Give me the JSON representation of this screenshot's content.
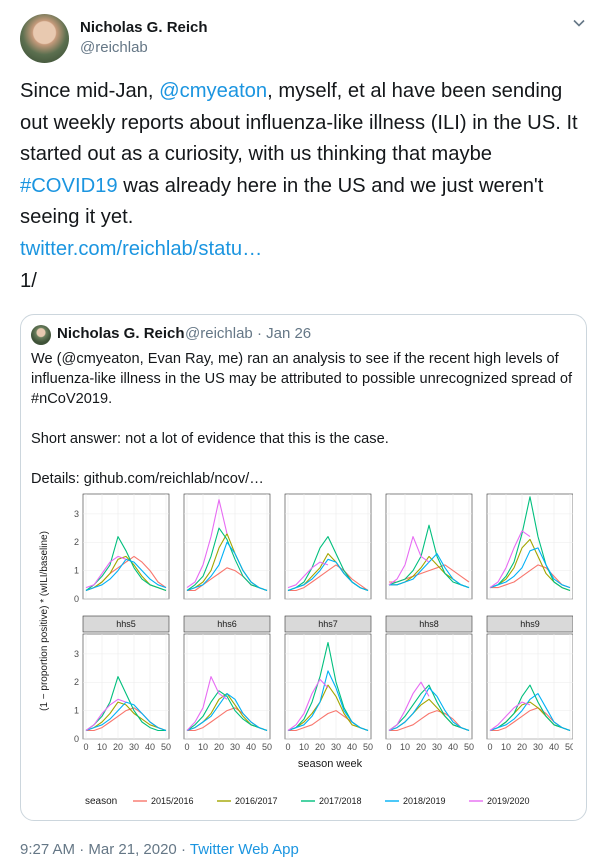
{
  "author": {
    "name": "Nicholas G. Reich",
    "handle": "@reichlab"
  },
  "tweet": {
    "p1": "Since mid-Jan, ",
    "mention": "@cmyeaton",
    "p2": ", myself, et al have been sending out weekly reports about influenza-like illness (ILI) in the US. It started out as a curiosity, with us thinking that maybe ",
    "hashtag": "#COVID19",
    "p3": " was already here in the US and we just weren't seeing it yet.",
    "link": "twitter.com/reichlab/statu…",
    "thread": "1/"
  },
  "quote": {
    "name": "Nicholas G. Reich",
    "handle": "@reichlab",
    "sep": "·",
    "date": "Jan 26",
    "text": "We (@cmyeaton, Evan Ray, me) ran an analysis to see if the recent high levels of influenza-like illness in the US may be attributed to possible unrecognized spread of #nCoV2019.\n\nShort answer: not a lot of evidence that this is the case.\n\nDetails: github.com/reichlab/ncov/…"
  },
  "meta": {
    "time": "9:27 AM",
    "dot": "·",
    "date": "Mar 21, 2020",
    "dot2": "·",
    "app": "Twitter Web App"
  },
  "chart_data": {
    "type": "line",
    "title": "",
    "xlabel": "season week",
    "ylabel": "(1 − proportion positive) * (wILI/baseline)",
    "x": [
      0,
      5,
      10,
      15,
      20,
      25,
      30,
      35,
      40,
      45,
      50
    ],
    "xticks": [
      "0",
      "10",
      "20",
      "30",
      "40",
      "50"
    ],
    "yticks": [
      "0",
      "1",
      "2",
      "3"
    ],
    "ylim": [
      0,
      3.7
    ],
    "legend_title": "season",
    "legend_position": "bottom",
    "series_names": [
      "2015/2016",
      "2016/2017",
      "2017/2018",
      "2018/2019",
      "2019/2020"
    ],
    "colors": [
      "#f8766d",
      "#a3a500",
      "#00bf7d",
      "#00b0f6",
      "#e76bf3"
    ],
    "panels": [
      {
        "label": "",
        "series": [
          {
            "name": "2015/2016",
            "values": [
              0.3,
              0.4,
              0.6,
              0.9,
              1.1,
              1.3,
              1.5,
              1.3,
              1.0,
              0.6,
              0.4
            ]
          },
          {
            "name": "2016/2017",
            "values": [
              0.3,
              0.4,
              0.6,
              0.9,
              1.4,
              1.5,
              1.2,
              0.8,
              0.5,
              0.4,
              0.3
            ]
          },
          {
            "name": "2017/2018",
            "values": [
              0.3,
              0.5,
              0.8,
              1.2,
              2.2,
              1.7,
              1.1,
              0.7,
              0.5,
              0.4,
              0.3
            ]
          },
          {
            "name": "2018/2019",
            "values": [
              0.3,
              0.4,
              0.5,
              0.7,
              1.0,
              1.4,
              1.3,
              1.0,
              0.7,
              0.5,
              0.4
            ]
          },
          {
            "name": "2019/2020",
            "values": [
              0.4,
              0.5,
              0.9,
              1.3,
              1.5,
              1.4
            ]
          }
        ]
      },
      {
        "label": "",
        "series": [
          {
            "name": "2015/2016",
            "values": [
              0.3,
              0.3,
              0.5,
              0.7,
              0.9,
              1.1,
              1.0,
              0.8,
              0.5,
              0.4,
              0.3
            ]
          },
          {
            "name": "2016/2017",
            "values": [
              0.3,
              0.4,
              0.6,
              1.0,
              1.8,
              2.3,
              1.6,
              1.0,
              0.6,
              0.4,
              0.3
            ]
          },
          {
            "name": "2017/2018",
            "values": [
              0.3,
              0.5,
              0.8,
              1.5,
              2.5,
              2.1,
              1.4,
              0.8,
              0.5,
              0.4,
              0.3
            ]
          },
          {
            "name": "2018/2019",
            "values": [
              0.3,
              0.4,
              0.5,
              0.8,
              1.2,
              2.0,
              1.6,
              1.0,
              0.6,
              0.4,
              0.3
            ]
          },
          {
            "name": "2019/2020",
            "values": [
              0.4,
              0.6,
              1.2,
              2.2,
              3.5,
              2.3
            ]
          }
        ]
      },
      {
        "label": "",
        "series": [
          {
            "name": "2015/2016",
            "values": [
              0.3,
              0.3,
              0.4,
              0.6,
              0.8,
              1.0,
              1.2,
              1.0,
              0.7,
              0.5,
              0.3
            ]
          },
          {
            "name": "2016/2017",
            "values": [
              0.3,
              0.4,
              0.5,
              0.8,
              1.1,
              1.6,
              1.3,
              0.9,
              0.6,
              0.4,
              0.3
            ]
          },
          {
            "name": "2017/2018",
            "values": [
              0.3,
              0.4,
              0.6,
              1.1,
              1.8,
              2.2,
              1.6,
              1.0,
              0.6,
              0.4,
              0.3
            ]
          },
          {
            "name": "2018/2019",
            "values": [
              0.3,
              0.4,
              0.5,
              0.7,
              1.0,
              1.4,
              1.3,
              0.9,
              0.6,
              0.4,
              0.3
            ]
          },
          {
            "name": "2019/2020",
            "values": [
              0.4,
              0.5,
              0.8,
              1.1,
              1.3,
              1.2
            ]
          }
        ]
      },
      {
        "label": "",
        "series": [
          {
            "name": "2015/2016",
            "values": [
              0.6,
              0.6,
              0.7,
              0.8,
              0.9,
              1.0,
              1.1,
              1.2,
              1.0,
              0.8,
              0.6
            ]
          },
          {
            "name": "2016/2017",
            "values": [
              0.5,
              0.5,
              0.6,
              0.8,
              1.1,
              1.5,
              1.2,
              0.9,
              0.7,
              0.5,
              0.4
            ]
          },
          {
            "name": "2017/2018",
            "values": [
              0.5,
              0.6,
              0.7,
              1.0,
              1.5,
              2.6,
              1.5,
              0.9,
              0.6,
              0.5,
              0.4
            ]
          },
          {
            "name": "2018/2019",
            "values": [
              0.5,
              0.5,
              0.6,
              0.7,
              1.0,
              1.3,
              1.6,
              1.1,
              0.7,
              0.5,
              0.4
            ]
          },
          {
            "name": "2019/2020",
            "values": [
              0.5,
              0.7,
              1.2,
              2.2,
              1.5,
              1.3
            ]
          }
        ]
      },
      {
        "label": "",
        "series": [
          {
            "name": "2015/2016",
            "values": [
              0.4,
              0.4,
              0.5,
              0.6,
              0.8,
              1.0,
              1.2,
              1.1,
              0.8,
              0.5,
              0.4
            ]
          },
          {
            "name": "2016/2017",
            "values": [
              0.4,
              0.5,
              0.7,
              1.1,
              1.8,
              2.1,
              1.5,
              0.9,
              0.6,
              0.4,
              0.3
            ]
          },
          {
            "name": "2017/2018",
            "values": [
              0.4,
              0.5,
              0.8,
              1.3,
              2.3,
              3.6,
              2.2,
              1.2,
              0.6,
              0.4,
              0.3
            ]
          },
          {
            "name": "2018/2019",
            "values": [
              0.4,
              0.5,
              0.6,
              0.8,
              1.1,
              1.7,
              1.8,
              1.2,
              0.7,
              0.5,
              0.4
            ]
          },
          {
            "name": "2019/2020",
            "values": [
              0.4,
              0.6,
              1.1,
              1.8,
              2.4,
              2.2
            ]
          }
        ]
      },
      {
        "label": "hhs5",
        "series": [
          {
            "name": "2015/2016",
            "values": [
              0.3,
              0.3,
              0.4,
              0.6,
              0.8,
              1.0,
              1.1,
              0.9,
              0.6,
              0.4,
              0.3
            ]
          },
          {
            "name": "2016/2017",
            "values": [
              0.3,
              0.4,
              0.6,
              0.9,
              1.3,
              1.2,
              0.9,
              0.7,
              0.5,
              0.4,
              0.3
            ]
          },
          {
            "name": "2017/2018",
            "values": [
              0.3,
              0.5,
              0.8,
              1.3,
              2.2,
              1.6,
              1.0,
              0.6,
              0.4,
              0.3,
              0.3
            ]
          },
          {
            "name": "2018/2019",
            "values": [
              0.3,
              0.4,
              0.5,
              0.7,
              1.0,
              1.3,
              1.2,
              0.9,
              0.6,
              0.4,
              0.3
            ]
          },
          {
            "name": "2019/2020",
            "values": [
              0.3,
              0.5,
              0.9,
              1.2,
              1.4,
              1.3
            ]
          }
        ]
      },
      {
        "label": "hhs6",
        "series": [
          {
            "name": "2015/2016",
            "values": [
              0.3,
              0.3,
              0.4,
              0.6,
              0.8,
              1.0,
              1.1,
              0.9,
              0.6,
              0.4,
              0.3
            ]
          },
          {
            "name": "2016/2017",
            "values": [
              0.3,
              0.4,
              0.6,
              0.9,
              1.4,
              1.6,
              1.2,
              0.8,
              0.5,
              0.4,
              0.3
            ]
          },
          {
            "name": "2017/2018",
            "values": [
              0.3,
              0.5,
              0.8,
              1.3,
              1.7,
              1.5,
              1.0,
              0.7,
              0.5,
              0.4,
              0.3
            ]
          },
          {
            "name": "2018/2019",
            "values": [
              0.3,
              0.4,
              0.6,
              0.8,
              1.2,
              1.6,
              1.4,
              0.9,
              0.6,
              0.4,
              0.3
            ]
          },
          {
            "name": "2019/2020",
            "values": [
              0.3,
              0.6,
              1.1,
              2.2,
              1.6,
              1.4
            ]
          }
        ]
      },
      {
        "label": "hhs7",
        "series": [
          {
            "name": "2015/2016",
            "values": [
              0.3,
              0.3,
              0.4,
              0.5,
              0.7,
              0.9,
              1.0,
              0.8,
              0.6,
              0.4,
              0.3
            ]
          },
          {
            "name": "2016/2017",
            "values": [
              0.3,
              0.4,
              0.6,
              0.9,
              1.3,
              1.9,
              1.5,
              0.9,
              0.5,
              0.4,
              0.3
            ]
          },
          {
            "name": "2017/2018",
            "values": [
              0.3,
              0.4,
              0.7,
              1.3,
              2.2,
              3.4,
              2.0,
              1.1,
              0.6,
              0.4,
              0.3
            ]
          },
          {
            "name": "2018/2019",
            "values": [
              0.3,
              0.4,
              0.5,
              0.8,
              1.3,
              2.4,
              1.8,
              1.0,
              0.6,
              0.4,
              0.3
            ]
          },
          {
            "name": "2019/2020",
            "values": [
              0.3,
              0.5,
              0.9,
              1.6,
              2.1,
              1.8
            ]
          }
        ]
      },
      {
        "label": "hhs8",
        "series": [
          {
            "name": "2015/2016",
            "values": [
              0.3,
              0.3,
              0.4,
              0.5,
              0.7,
              0.9,
              1.0,
              0.9,
              0.7,
              0.4,
              0.3
            ]
          },
          {
            "name": "2016/2017",
            "values": [
              0.3,
              0.4,
              0.6,
              0.9,
              1.2,
              1.4,
              1.1,
              0.8,
              0.5,
              0.4,
              0.3
            ]
          },
          {
            "name": "2017/2018",
            "values": [
              0.3,
              0.5,
              0.8,
              1.2,
              1.6,
              1.9,
              1.3,
              0.8,
              0.5,
              0.4,
              0.3
            ]
          },
          {
            "name": "2018/2019",
            "values": [
              0.3,
              0.4,
              0.6,
              0.9,
              1.3,
              1.8,
              1.5,
              1.0,
              0.6,
              0.4,
              0.3
            ]
          },
          {
            "name": "2019/2020",
            "values": [
              0.3,
              0.5,
              1.0,
              1.6,
              2.0,
              1.5
            ]
          }
        ]
      },
      {
        "label": "hhs9",
        "series": [
          {
            "name": "2015/2016",
            "values": [
              0.3,
              0.3,
              0.4,
              0.6,
              0.8,
              1.0,
              1.1,
              0.9,
              0.6,
              0.4,
              0.3
            ]
          },
          {
            "name": "2016/2017",
            "values": [
              0.3,
              0.4,
              0.6,
              0.9,
              1.2,
              1.3,
              1.1,
              0.8,
              0.5,
              0.4,
              0.3
            ]
          },
          {
            "name": "2017/2018",
            "values": [
              0.3,
              0.4,
              0.6,
              0.9,
              1.5,
              1.9,
              1.3,
              0.8,
              0.5,
              0.4,
              0.3
            ]
          },
          {
            "name": "2018/2019",
            "values": [
              0.3,
              0.4,
              0.5,
              0.7,
              1.0,
              1.4,
              1.6,
              1.1,
              0.6,
              0.4,
              0.3
            ]
          },
          {
            "name": "2019/2020",
            "values": [
              0.3,
              0.5,
              0.8,
              1.1,
              1.3,
              1.2
            ]
          }
        ]
      }
    ]
  }
}
